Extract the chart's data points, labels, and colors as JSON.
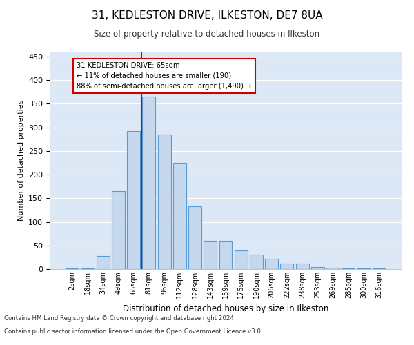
{
  "title_line1": "31, KEDLESTON DRIVE, ILKESTON, DE7 8UA",
  "title_line2": "Size of property relative to detached houses in Ilkeston",
  "xlabel": "Distribution of detached houses by size in Ilkeston",
  "ylabel": "Number of detached properties",
  "footnote1": "Contains HM Land Registry data © Crown copyright and database right 2024.",
  "footnote2": "Contains public sector information licensed under the Open Government Licence v3.0.",
  "annotation_title": "31 KEDLESTON DRIVE: 65sqm",
  "annotation_line1": "← 11% of detached houses are smaller (190)",
  "annotation_line2": "88% of semi-detached houses are larger (1,490) →",
  "bar_labels": [
    "2sqm",
    "18sqm",
    "34sqm",
    "49sqm",
    "65sqm",
    "81sqm",
    "96sqm",
    "112sqm",
    "128sqm",
    "143sqm",
    "159sqm",
    "175sqm",
    "190sqm",
    "206sqm",
    "222sqm",
    "238sqm",
    "253sqm",
    "269sqm",
    "285sqm",
    "300sqm",
    "316sqm"
  ],
  "bar_values": [
    2,
    2,
    28,
    165,
    292,
    365,
    285,
    225,
    133,
    60,
    60,
    40,
    30,
    22,
    12,
    12,
    5,
    3,
    2,
    1,
    1
  ],
  "bar_color": "#c5d8ed",
  "bar_edge_color": "#5b9bd5",
  "marker_color": "#cc0000",
  "background_color": "#dce8f5",
  "ylim": [
    0,
    460
  ],
  "yticks": [
    0,
    50,
    100,
    150,
    200,
    250,
    300,
    350,
    400,
    450
  ],
  "annotation_box_color": "#ffffff",
  "annotation_box_edge": "#cc0000",
  "marker_label": "65sqm"
}
